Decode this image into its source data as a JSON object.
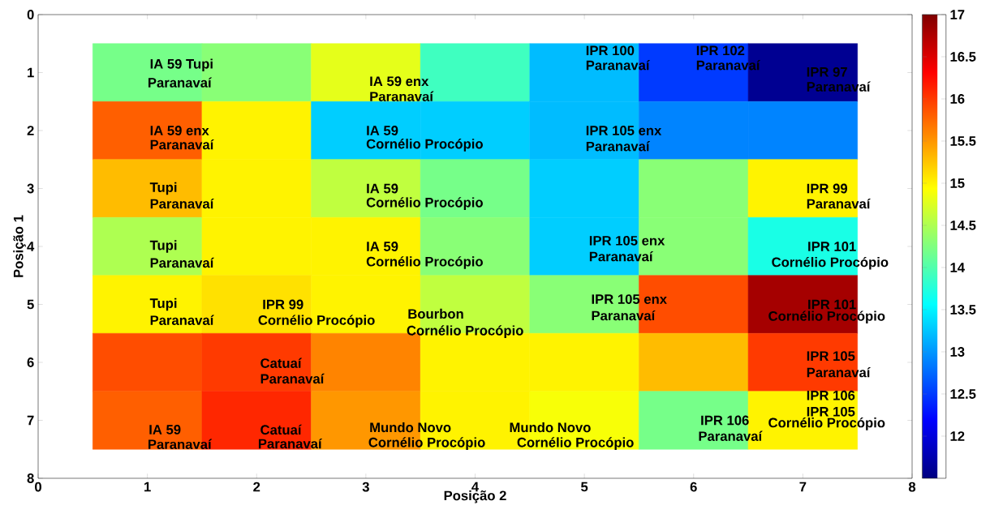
{
  "chart_data": {
    "type": "heatmap",
    "xlabel": "Posição 2",
    "ylabel": "Posição 1",
    "x": [
      1,
      2,
      3,
      4,
      5,
      6,
      7
    ],
    "y": [
      1,
      2,
      3,
      4,
      5,
      6,
      7
    ],
    "cells": [
      [
        14.2,
        14.3,
        14.8,
        13.9,
        13.2,
        12.5,
        11.6
      ],
      [
        15.8,
        15.0,
        13.3,
        13.3,
        13.2,
        12.9,
        12.9
      ],
      [
        15.3,
        15.0,
        14.6,
        14.2,
        13.3,
        14.3,
        15.0
      ],
      [
        14.5,
        15.0,
        15.0,
        14.3,
        13.3,
        14.3,
        13.7
      ],
      [
        15.0,
        15.1,
        15.0,
        14.6,
        14.3,
        15.9,
        16.8
      ],
      [
        15.9,
        16.0,
        15.6,
        15.0,
        15.0,
        15.3,
        16.0
      ],
      [
        15.8,
        16.1,
        15.5,
        15.0,
        14.9,
        14.2,
        15.0
      ]
    ],
    "xlim": [
      0,
      8
    ],
    "xticks": [
      0,
      1,
      2,
      3,
      4,
      5,
      6,
      7,
      8
    ],
    "ylim": [
      8,
      0
    ],
    "yticks": [
      0,
      1,
      2,
      3,
      4,
      5,
      6,
      7,
      8
    ],
    "clim": [
      11.5,
      17
    ],
    "cticks": [
      12,
      12.5,
      13,
      13.5,
      14,
      14.5,
      15,
      15.5,
      16,
      16.5,
      17
    ],
    "annotations": [
      "IA 59  Tupi",
      "Paranavaí",
      "IA 59 enx",
      "Paranavaí",
      "IPR 100",
      "Paranavaí",
      "IPR 102",
      "Paranavaí",
      "IPR 97",
      "Paranavaí",
      "IA 59 enx",
      "Paranavaí",
      "IA 59",
      "Cornélio Procópio",
      "IPR 105 enx",
      "Paranavaí",
      "Tupi",
      "Paranavaí",
      "IA 59",
      "Cornélio Procópio",
      "IPR 99",
      "Paranavaí",
      "Tupi",
      "Paranavaí",
      "IA 59",
      "Cornélio Procópio",
      "IPR 105 enx",
      "Paranavaí",
      "IPR 101",
      "Cornélio Procópio",
      "Tupi",
      "Paranavaí",
      "IPR 99",
      "Cornélio Procópio",
      "Bourbon",
      "Cornélio Procópio",
      "IPR 105 enx",
      "Paranavaí",
      "IPR 101",
      "Cornélio Procópio",
      "IPR 105",
      "Paranavaí",
      "Catuaí",
      "Paranavaí",
      "IPR 106",
      "IPR 105",
      "Cornélio Procópio",
      "IPR 106",
      "Paranavaí",
      "IA 59",
      "Paranavaí",
      "Catuaí",
      "Paranavaí",
      "Mundo Novo",
      "Cornélio Procópio",
      "Mundo Novo",
      "Cornélio Procópio"
    ]
  }
}
